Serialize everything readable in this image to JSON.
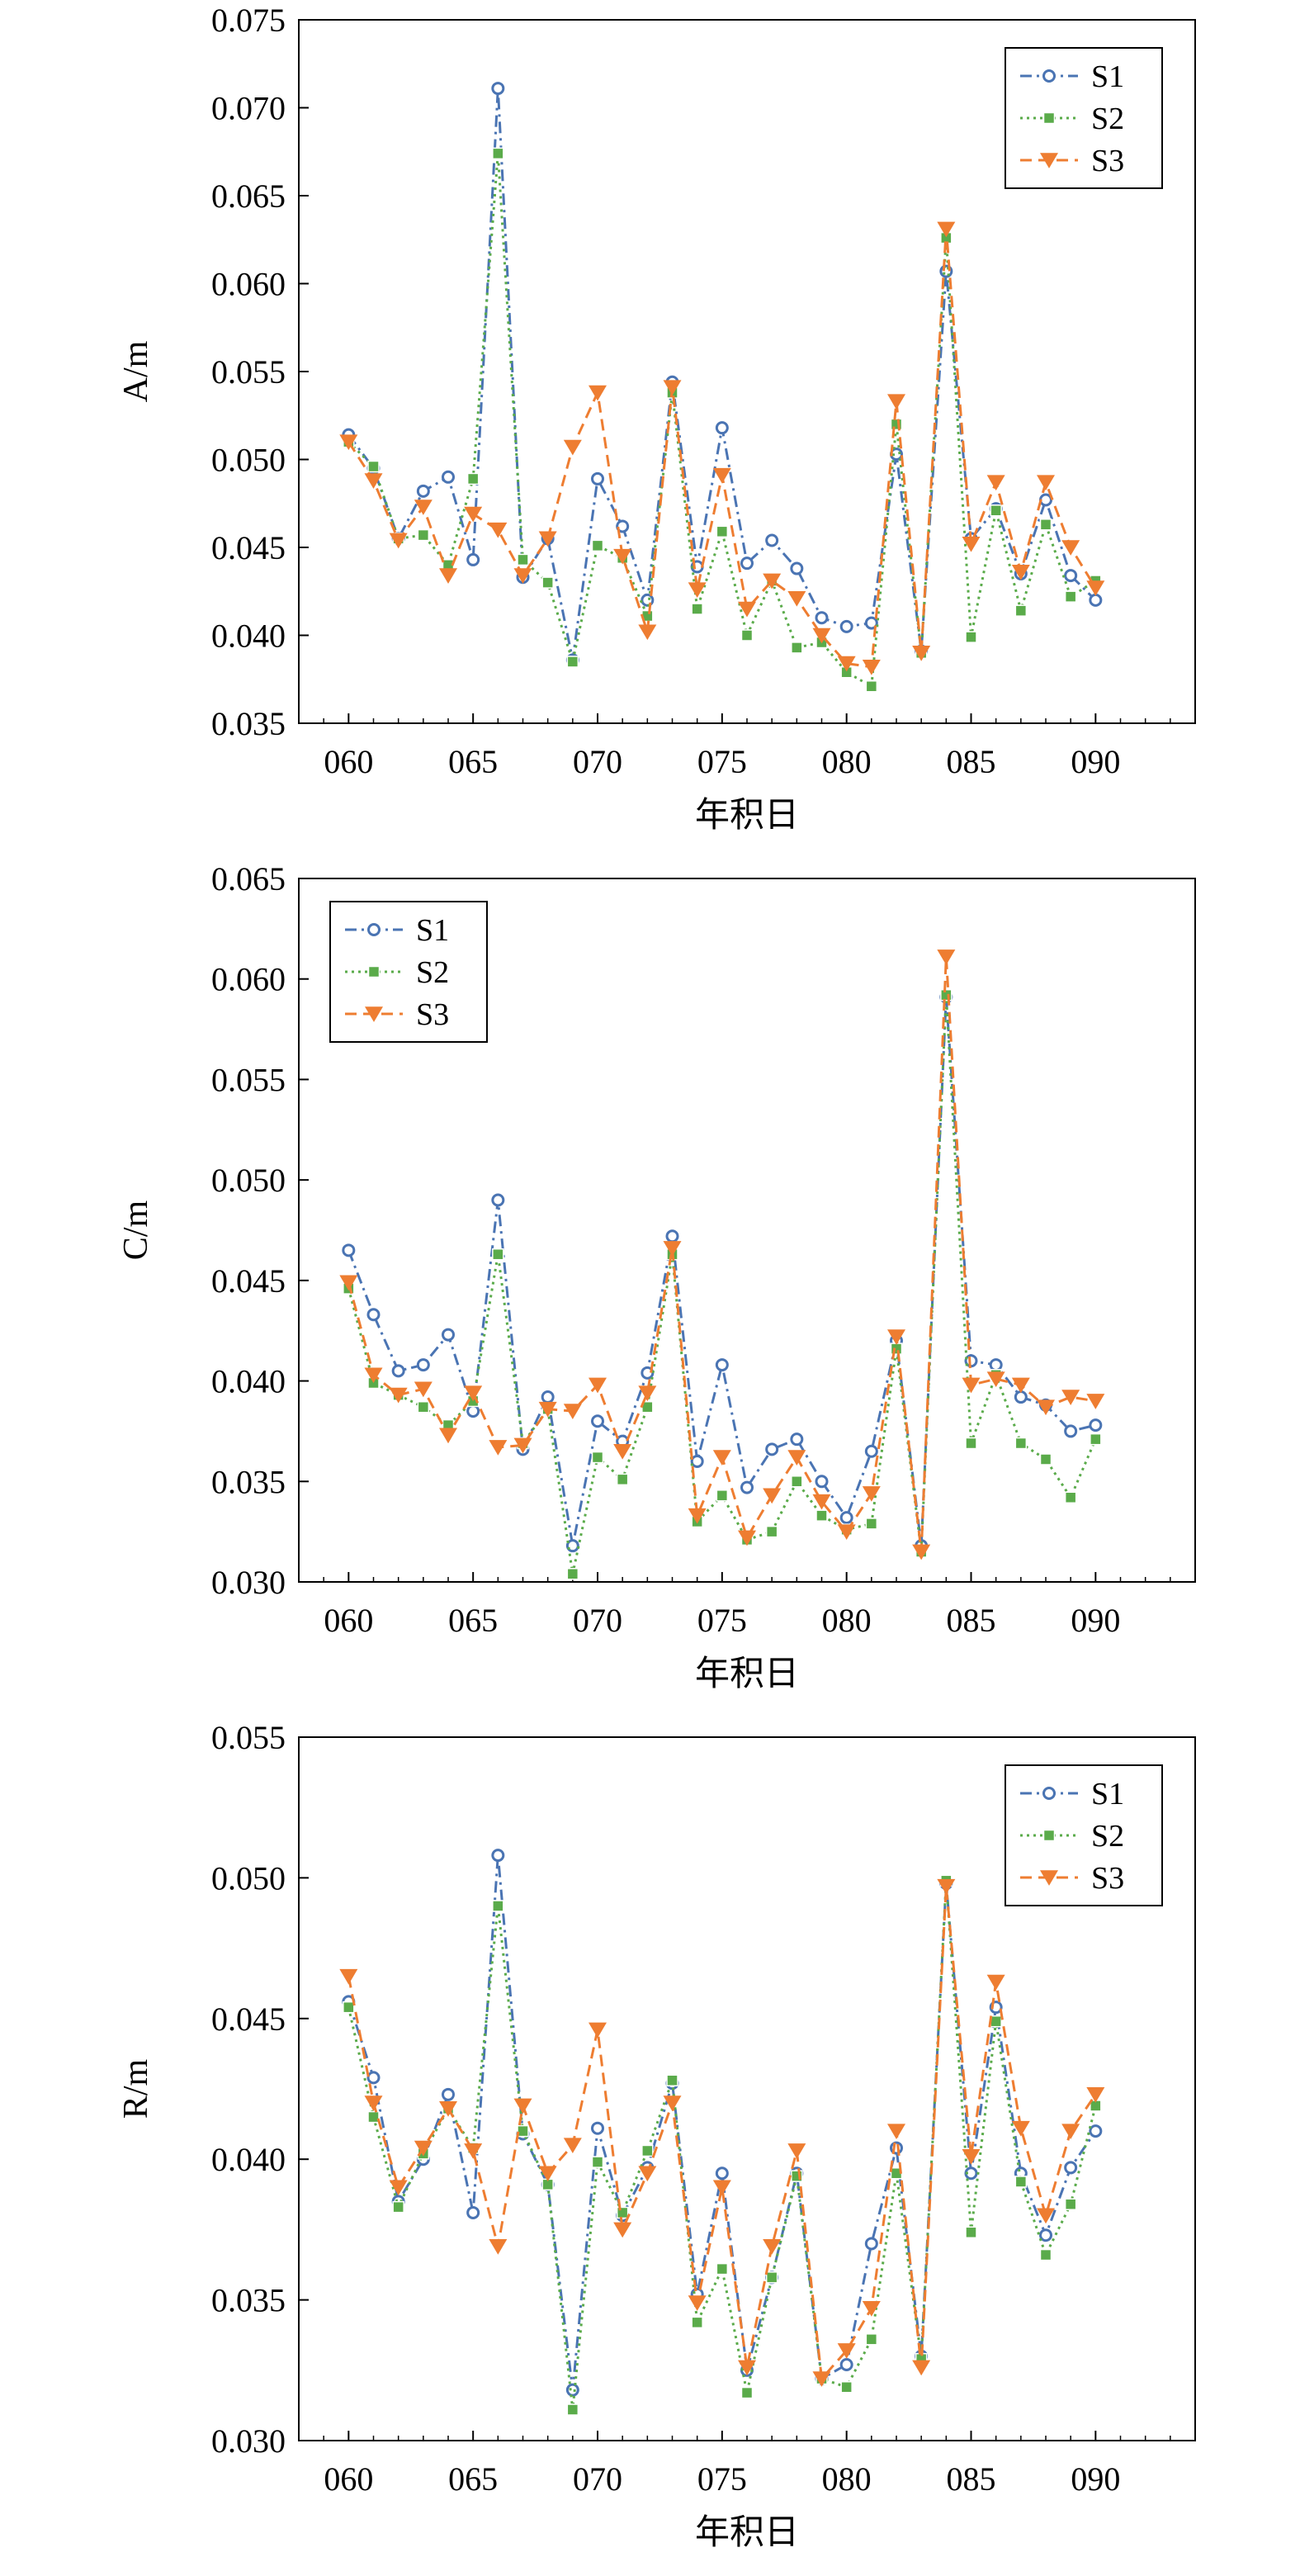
{
  "chart_data": [
    {
      "type": "line",
      "ylabel": "A/m",
      "xlabel": "年积日",
      "xlim": [
        58,
        94
      ],
      "ylim": [
        0.035,
        0.075
      ],
      "x_ticks": [
        "060",
        "065",
        "070",
        "075",
        "080",
        "085",
        "090"
      ],
      "y_ticks": [
        "0.035",
        "0.040",
        "0.045",
        "0.050",
        "0.055",
        "0.060",
        "0.065",
        "0.070",
        "0.075"
      ],
      "legend_position": "top-right",
      "x": [
        60,
        61,
        62,
        63,
        64,
        65,
        66,
        67,
        68,
        69,
        70,
        71,
        72,
        73,
        74,
        75,
        76,
        77,
        78,
        79,
        80,
        81,
        82,
        83,
        84,
        85,
        86,
        87,
        88,
        89,
        90
      ],
      "series": [
        {
          "name": "S1",
          "color": "#4a74b3",
          "marker": "circle",
          "dash": "dashdot",
          "values": [
            0.0514,
            0.0495,
            0.0455,
            0.0482,
            0.049,
            0.0443,
            0.0711,
            0.0433,
            0.0455,
            0.0386,
            0.0489,
            0.0462,
            0.042,
            0.0544,
            0.0439,
            0.0518,
            0.0441,
            0.0454,
            0.0438,
            0.041,
            0.0405,
            0.0407,
            0.0503,
            0.0391,
            0.0607,
            0.0455,
            0.0472,
            0.0435,
            0.0477,
            0.0434,
            0.042
          ]
        },
        {
          "name": "S2",
          "color": "#5aab4a",
          "marker": "square",
          "dash": "dot",
          "values": [
            0.051,
            0.0496,
            0.0455,
            0.0457,
            0.044,
            0.0489,
            0.0674,
            0.0443,
            0.043,
            0.0385,
            0.0451,
            0.0444,
            0.0411,
            0.0538,
            0.0415,
            0.0459,
            0.04,
            0.0431,
            0.0393,
            0.0396,
            0.0379,
            0.0371,
            0.052,
            0.039,
            0.0626,
            0.0399,
            0.0471,
            0.0414,
            0.0463,
            0.0422,
            0.0431
          ]
        },
        {
          "name": "S3",
          "color": "#ee7d31",
          "marker": "triangle-down",
          "dash": "dash",
          "values": [
            0.051,
            0.0488,
            0.0454,
            0.0473,
            0.0434,
            0.0469,
            0.046,
            0.0434,
            0.0455,
            0.0507,
            0.0538,
            0.0445,
            0.0402,
            0.0541,
            0.0426,
            0.0491,
            0.0415,
            0.0431,
            0.0421,
            0.04,
            0.0384,
            0.0382,
            0.0533,
            0.039,
            0.0631,
            0.0452,
            0.0487,
            0.0436,
            0.0487,
            0.045,
            0.0427
          ]
        }
      ]
    },
    {
      "type": "line",
      "ylabel": "C/m",
      "xlabel": "年积日",
      "xlim": [
        58,
        94
      ],
      "ylim": [
        0.03,
        0.065
      ],
      "x_ticks": [
        "060",
        "065",
        "070",
        "075",
        "080",
        "085",
        "090"
      ],
      "y_ticks": [
        "0.030",
        "0.035",
        "0.040",
        "0.045",
        "0.050",
        "0.055",
        "0.060",
        "0.065"
      ],
      "legend_position": "top-left",
      "x": [
        60,
        61,
        62,
        63,
        64,
        65,
        66,
        67,
        68,
        69,
        70,
        71,
        72,
        73,
        74,
        75,
        76,
        77,
        78,
        79,
        80,
        81,
        82,
        83,
        84,
        85,
        86,
        87,
        88,
        89,
        90
      ],
      "series": [
        {
          "name": "S1",
          "color": "#4a74b3",
          "marker": "circle",
          "dash": "dashdot",
          "values": [
            0.0465,
            0.0433,
            0.0405,
            0.0408,
            0.0423,
            0.0385,
            0.049,
            0.0366,
            0.0392,
            0.0318,
            0.038,
            0.037,
            0.0404,
            0.0472,
            0.036,
            0.0408,
            0.0347,
            0.0366,
            0.0371,
            0.035,
            0.0332,
            0.0365,
            0.042,
            0.0318,
            0.0591,
            0.041,
            0.0408,
            0.0392,
            0.0388,
            0.0375,
            0.0378
          ]
        },
        {
          "name": "S2",
          "color": "#5aab4a",
          "marker": "square",
          "dash": "dot",
          "values": [
            0.0446,
            0.0399,
            0.0393,
            0.0387,
            0.0378,
            0.039,
            0.0463,
            0.0369,
            0.0386,
            0.0304,
            0.0362,
            0.0351,
            0.0387,
            0.0463,
            0.033,
            0.0343,
            0.0321,
            0.0325,
            0.035,
            0.0333,
            0.0326,
            0.0329,
            0.0416,
            0.0315,
            0.0592,
            0.0369,
            0.0403,
            0.0369,
            0.0361,
            0.0342,
            0.0371
          ]
        },
        {
          "name": "S3",
          "color": "#ee7d31",
          "marker": "triangle-down",
          "dash": "dash",
          "values": [
            0.0449,
            0.0403,
            0.0393,
            0.0396,
            0.0373,
            0.0394,
            0.0367,
            0.0368,
            0.0386,
            0.0385,
            0.0398,
            0.0365,
            0.0394,
            0.0466,
            0.0333,
            0.0362,
            0.0322,
            0.0343,
            0.0362,
            0.034,
            0.0325,
            0.0344,
            0.0422,
            0.0315,
            0.0611,
            0.0398,
            0.0401,
            0.0398,
            0.0387,
            0.0392,
            0.039
          ]
        }
      ]
    },
    {
      "type": "line",
      "ylabel": "R/m",
      "xlabel": "年积日",
      "xlim": [
        58,
        94
      ],
      "ylim": [
        0.03,
        0.055
      ],
      "x_ticks": [
        "060",
        "065",
        "070",
        "075",
        "080",
        "085",
        "090"
      ],
      "y_ticks": [
        "0.030",
        "0.035",
        "0.040",
        "0.045",
        "0.050",
        "0.055"
      ],
      "legend_position": "top-right",
      "x": [
        60,
        61,
        62,
        63,
        64,
        65,
        66,
        67,
        68,
        69,
        70,
        71,
        72,
        73,
        74,
        75,
        76,
        77,
        78,
        79,
        80,
        81,
        82,
        83,
        84,
        85,
        86,
        87,
        88,
        89,
        90
      ],
      "series": [
        {
          "name": "S1",
          "color": "#4a74b3",
          "marker": "circle",
          "dash": "dashdot",
          "values": [
            0.0456,
            0.0429,
            0.0385,
            0.04,
            0.0423,
            0.0381,
            0.0508,
            0.0409,
            0.0391,
            0.0318,
            0.0411,
            0.038,
            0.0397,
            0.0427,
            0.0352,
            0.0395,
            0.0325,
            0.0358,
            0.0395,
            0.0322,
            0.0327,
            0.037,
            0.0404,
            0.033,
            0.0498,
            0.0395,
            0.0454,
            0.0395,
            0.0373,
            0.0397,
            0.041
          ]
        },
        {
          "name": "S2",
          "color": "#5aab4a",
          "marker": "square",
          "dash": "dot",
          "values": [
            0.0454,
            0.0415,
            0.0383,
            0.0402,
            0.0418,
            0.0404,
            0.049,
            0.041,
            0.0391,
            0.0311,
            0.0399,
            0.0381,
            0.0403,
            0.0428,
            0.0342,
            0.0361,
            0.0317,
            0.0358,
            0.0394,
            0.0322,
            0.0319,
            0.0336,
            0.0395,
            0.0329,
            0.0499,
            0.0374,
            0.0449,
            0.0392,
            0.0366,
            0.0384,
            0.0419
          ]
        },
        {
          "name": "S3",
          "color": "#ee7d31",
          "marker": "triangle-down",
          "dash": "dash",
          "values": [
            0.0465,
            0.042,
            0.039,
            0.0404,
            0.0418,
            0.0403,
            0.0369,
            0.0419,
            0.0395,
            0.0405,
            0.0446,
            0.0375,
            0.0395,
            0.042,
            0.0349,
            0.039,
            0.0326,
            0.0369,
            0.0403,
            0.0322,
            0.0332,
            0.0347,
            0.041,
            0.0326,
            0.0497,
            0.0401,
            0.0463,
            0.0411,
            0.038,
            0.041,
            0.0423
          ]
        }
      ]
    }
  ]
}
